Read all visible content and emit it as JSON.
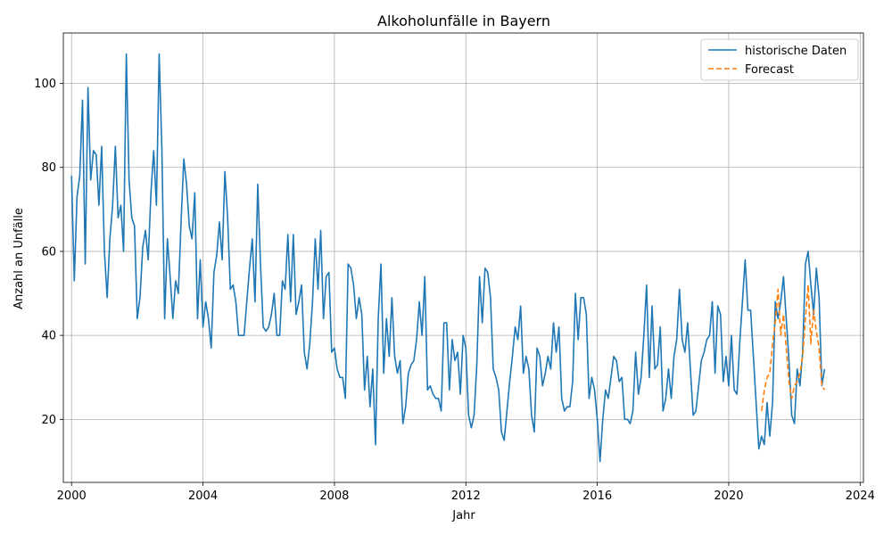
{
  "chart_data": {
    "type": "line",
    "title": "Alkoholunfälle in Bayern",
    "xlabel": "Jahr",
    "ylabel": "Anzahl an Unfälle",
    "xlim": [
      1999.75,
      2024.1
    ],
    "ylim": [
      5,
      112
    ],
    "xticks": [
      2000,
      2004,
      2008,
      2012,
      2016,
      2020,
      2024
    ],
    "yticks": [
      20,
      40,
      60,
      80,
      100
    ],
    "grid": true,
    "legend_position": "top-right",
    "series": [
      {
        "name": "historische Daten",
        "color": "#1f77b4",
        "style": "solid",
        "start": "2000-01",
        "step": "month",
        "values": [
          78,
          53,
          73,
          78,
          96,
          57,
          99,
          77,
          84,
          83,
          71,
          85,
          60,
          49,
          63,
          71,
          85,
          68,
          71,
          60,
          107,
          77,
          68,
          66,
          44,
          49,
          61,
          65,
          58,
          74,
          84,
          71,
          107,
          84,
          44,
          63,
          54,
          44,
          53,
          50,
          67,
          82,
          76,
          66,
          63,
          74,
          44,
          58,
          42,
          48,
          44,
          37,
          55,
          59,
          67,
          58,
          79,
          68,
          51,
          52,
          48,
          40,
          40,
          40,
          48,
          56,
          63,
          48,
          76,
          57,
          42,
          41,
          42,
          45,
          50,
          40,
          40,
          53,
          51,
          64,
          48,
          64,
          45,
          48,
          52,
          36,
          32,
          38,
          48,
          63,
          51,
          65,
          44,
          54,
          55,
          36,
          37,
          32,
          30,
          30,
          25,
          57,
          56,
          52,
          44,
          49,
          45,
          27,
          35,
          23,
          32,
          14,
          44,
          57,
          31,
          44,
          35,
          49,
          35,
          31,
          34,
          19,
          23,
          31,
          33,
          34,
          39,
          48,
          40,
          54,
          27,
          28,
          26,
          25,
          25,
          22,
          43,
          43,
          27,
          39,
          34,
          36,
          26,
          40,
          37,
          21,
          18,
          21,
          33,
          54,
          43,
          56,
          55,
          49,
          32,
          30,
          27,
          17,
          15,
          22,
          29,
          35,
          42,
          39,
          47,
          31,
          35,
          32,
          21,
          17,
          37,
          35,
          28,
          31,
          35,
          32,
          43,
          36,
          42,
          25,
          22,
          23,
          23,
          29,
          50,
          39,
          49,
          49,
          45,
          25,
          30,
          27,
          20,
          10,
          20,
          27,
          25,
          30,
          35,
          34,
          29,
          30,
          20,
          20,
          19,
          22,
          36,
          26,
          30,
          40,
          52,
          30,
          47,
          32,
          33,
          42,
          22,
          25,
          32,
          25,
          35,
          39,
          51,
          39,
          36,
          43,
          32,
          21,
          22,
          28,
          34,
          36,
          39,
          40,
          48,
          31,
          47,
          45,
          29,
          35,
          28,
          40,
          27,
          26,
          38,
          48,
          58,
          46,
          46,
          35,
          24,
          13,
          16,
          14,
          24,
          16,
          24,
          48,
          44,
          48,
          54,
          44,
          34,
          21,
          19,
          32,
          28,
          36,
          57,
          60,
          52,
          45,
          56,
          49,
          28,
          32
        ]
      },
      {
        "name": "Forecast",
        "color": "#ff7f0e",
        "style": "dashed",
        "start": "2021-01",
        "step": "month",
        "values": [
          22,
          27,
          30,
          31,
          38,
          43,
          51,
          40,
          45,
          37,
          29,
          25,
          28,
          29,
          31,
          35,
          44,
          52,
          38,
          46,
          41,
          37,
          28,
          27
        ]
      }
    ]
  }
}
